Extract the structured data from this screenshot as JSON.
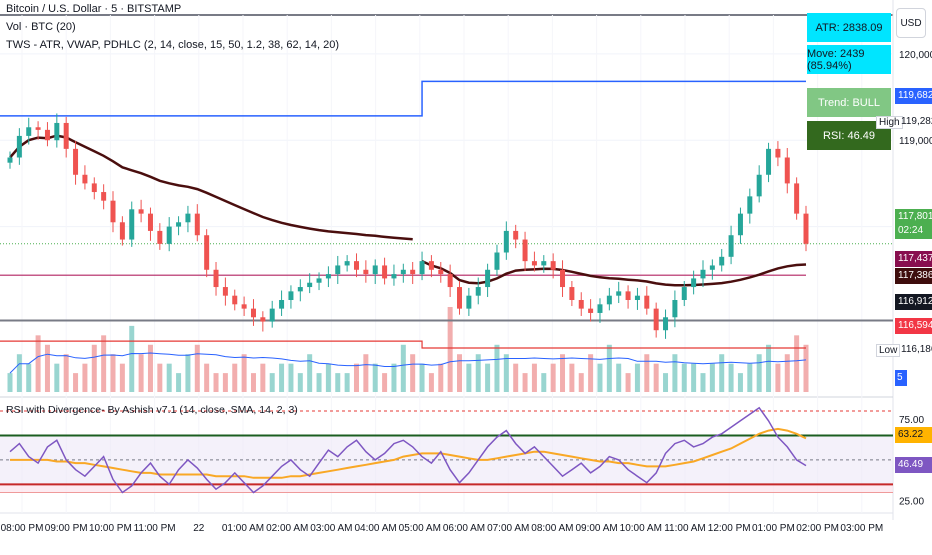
{
  "header": {
    "title": "Bitcoin / U.S. Dollar · 5 · BITSTAMP",
    "vol_legend": "Vol · BTC (20)",
    "tws_legend": "TWS - ATR, VWAP, PDHLC (2, 14, close, 15, 50, 1.2, 38, 62, 14, 20)",
    "rsi_legend": "RSI with Divergence- By Ashish v7.1 (14, close, SMA, 14, 2, 3)"
  },
  "currency_button": "USD",
  "info_panel": {
    "atr": "ATR: 2838.09",
    "move": "Move: 2439 (85.94%)",
    "trend": "Trend: BULL",
    "rsi": "RSI: 46.49",
    "colors": {
      "atr": "#00e5ff",
      "move": "#00e5ff",
      "trend": "#81c784",
      "rsi": "#33691e"
    }
  },
  "price_tags": {
    "high_label": "High",
    "high_value": "119,282",
    "low_label": "Low",
    "low_value": "116,186",
    "blue_line": "119,682",
    "current": "117,801",
    "countdown": "02:24",
    "vwap_upper": "117,437",
    "vwap": "117,386",
    "prev_close": "116,912",
    "red_line": "116,594",
    "volume": "5"
  },
  "chart_data": [
    {
      "type": "candlestick",
      "name": "price",
      "yaxis_ticks": [
        120000,
        119000,
        118000
      ],
      "yaxis_tick_labels": [
        "120,000",
        "119,000",
        "118,000"
      ],
      "ylim": [
        116050,
        120450
      ],
      "close_path": [
        118800,
        119050,
        119150,
        119120,
        119000,
        119200,
        118900,
        118600,
        118500,
        118400,
        118300,
        118050,
        117850,
        118200,
        118150,
        117950,
        117800,
        118000,
        118050,
        118150,
        117900,
        117500,
        117300,
        117200,
        117100,
        117050,
        116950,
        116900,
        117050,
        117150,
        117250,
        117300,
        117350,
        117400,
        117450,
        117550,
        117600,
        117500,
        117450,
        117550,
        117400,
        117450,
        117500,
        117450,
        117600,
        117500,
        117450,
        117300,
        117050,
        117200,
        117300,
        117500,
        117700,
        117950,
        117850,
        117600,
        117550,
        117600,
        117500,
        117300,
        117150,
        117050,
        117000,
        117100,
        117200,
        117250,
        117150,
        117200,
        117050,
        116800,
        116950,
        117150,
        117300,
        117400,
        117500,
        117550,
        117650,
        117900,
        118150,
        118350,
        118600,
        118900,
        118800,
        118500,
        118150,
        117801
      ],
      "blue_line": {
        "value_before": 119282,
        "value_after": 119682
      },
      "pdh_line": 117437,
      "prev_close_line": 117386,
      "red_line": 116594,
      "grey_line": 116912
    },
    {
      "type": "bar",
      "name": "volume",
      "values": [
        2,
        4,
        3,
        6,
        5,
        3,
        4,
        2,
        3,
        5,
        6,
        4,
        3,
        7,
        4,
        5,
        3,
        3,
        2,
        4,
        5,
        3,
        2,
        2,
        3,
        4,
        2,
        3,
        2,
        3,
        3,
        2,
        4,
        2,
        3,
        2,
        2,
        3,
        4,
        3,
        2,
        3,
        5,
        4,
        3,
        2,
        3,
        9,
        4,
        3,
        4,
        3,
        5,
        4,
        3,
        2,
        3,
        2,
        3,
        4,
        3,
        2,
        4,
        3,
        5,
        3,
        2,
        3,
        4,
        3,
        2,
        4,
        3,
        3,
        2,
        3,
        4,
        3,
        2,
        3,
        4,
        5,
        3,
        4,
        6,
        5
      ],
      "current": 5
    },
    {
      "type": "line",
      "name": "rsi",
      "yaxis_ticks": [
        75,
        50,
        25
      ],
      "yaxis_tick_labels": [
        "75.00",
        "50.00",
        "25.00"
      ],
      "ylim": [
        18,
        88
      ],
      "rsi_values": [
        55,
        60,
        52,
        48,
        58,
        62,
        50,
        44,
        40,
        46,
        52,
        38,
        30,
        34,
        42,
        48,
        40,
        35,
        44,
        50,
        45,
        38,
        32,
        36,
        42,
        36,
        30,
        34,
        40,
        46,
        50,
        44,
        40,
        48,
        56,
        52,
        58,
        62,
        55,
        50,
        54,
        60,
        62,
        58,
        52,
        48,
        55,
        44,
        36,
        42,
        50,
        58,
        64,
        68,
        60,
        54,
        58,
        52,
        46,
        40,
        44,
        48,
        42,
        46,
        52,
        50,
        44,
        40,
        36,
        42,
        54,
        60,
        62,
        58,
        60,
        64,
        66,
        70,
        74,
        78,
        82,
        74,
        64,
        58,
        50,
        46.49
      ],
      "sma_values": [
        50,
        50,
        50,
        50,
        50,
        49,
        49,
        48,
        48,
        47,
        46,
        45,
        44,
        43,
        42,
        42,
        41,
        41,
        41,
        41,
        41,
        41,
        40,
        40,
        40,
        40,
        39,
        39,
        39,
        39,
        40,
        40,
        41,
        42,
        43,
        44,
        45,
        46,
        47,
        48,
        49,
        50,
        52,
        53,
        54,
        54,
        54,
        53,
        52,
        51,
        50,
        50,
        51,
        52,
        53,
        54,
        55,
        55,
        54,
        53,
        52,
        51,
        50,
        49,
        49,
        48,
        48,
        47,
        46,
        46,
        46,
        47,
        48,
        49,
        51,
        53,
        55,
        57,
        60,
        63,
        66,
        68,
        69,
        68,
        66,
        63.22
      ],
      "rsi_current": "46.49",
      "sma_current": "63.22",
      "levels": {
        "upper_dashed": 80,
        "upper": 65,
        "mid": 50,
        "lower": 35,
        "lower_bound": 30
      }
    }
  ],
  "time_axis": {
    "labels": [
      "08:00 PM",
      "09:00 PM",
      "10:00 PM",
      "11:00 PM",
      "22",
      "01:00 AM",
      "02:00 AM",
      "03:00 AM",
      "04:00 AM",
      "05:00 AM",
      "06:00 AM",
      "07:00 AM",
      "08:00 AM",
      "09:00 AM",
      "10:00 AM",
      "11:00 AM",
      "12:00 PM",
      "01:00 PM",
      "02:00 PM",
      "03:00 PM"
    ]
  }
}
